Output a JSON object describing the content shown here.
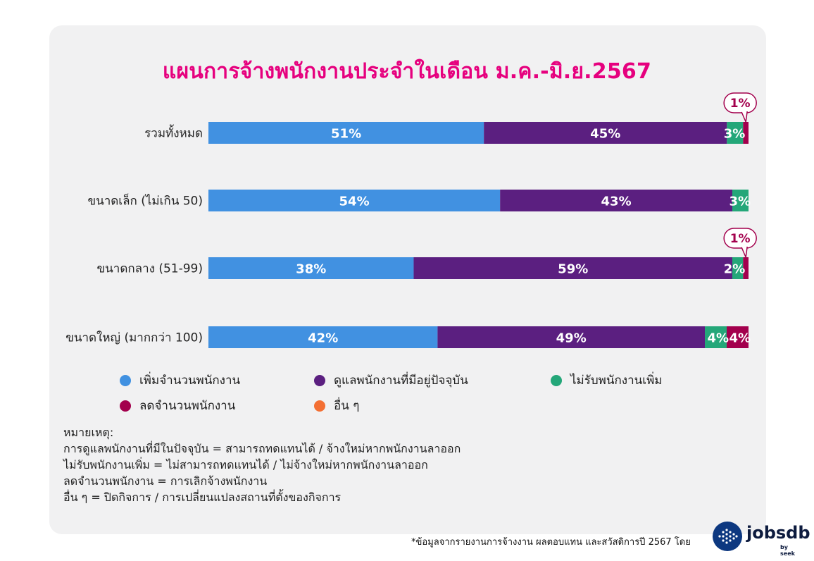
{
  "chart_data": {
    "type": "bar",
    "orientation": "horizontal-stacked",
    "title": "แผนการจ้างพนักงานประจำในเดือน ม.ค.-มิ.ย.2567",
    "categories": [
      "รวมทั้งหมด",
      "ขนาดเล็ก (ไม่เกิน 50)",
      "ขนาดกลาง (51-99)",
      "ขนาดใหญ่ (มากกว่า 100)"
    ],
    "series": [
      {
        "name": "เพิ่มจำนวนพนักงาน",
        "color": "#4191e1",
        "values": [
          51,
          54,
          38,
          42
        ],
        "labels": [
          "51%",
          "54%",
          "38%",
          "42%"
        ]
      },
      {
        "name": "ดูแลพนักงานที่มีอยู่ปัจจุบัน",
        "color": "#5b1f80",
        "values": [
          45,
          43,
          59,
          49
        ],
        "labels": [
          "45%",
          "43%",
          "59%",
          "49%"
        ]
      },
      {
        "name": "ไม่รับพนักงานเพิ่ม",
        "color": "#24a779",
        "values": [
          3,
          3,
          2,
          4
        ],
        "labels": [
          "3%",
          "3%",
          "2%",
          "4%"
        ]
      },
      {
        "name": "ลดจำนวนพนักงาน",
        "color": "#a3004d",
        "values": [
          1,
          0,
          1,
          4
        ],
        "labels": [
          "1%",
          "",
          "1%",
          "4%"
        ]
      },
      {
        "name": "อื่น ๆ",
        "color": "#f36f33",
        "values": [
          0,
          0,
          0,
          0
        ],
        "labels": [
          "",
          "",
          "",
          ""
        ]
      }
    ],
    "callouts": [
      {
        "category_index": 0,
        "series_index": 3,
        "text": "1%"
      },
      {
        "category_index": 2,
        "series_index": 3,
        "text": "1%"
      }
    ],
    "legend_position": "bottom"
  },
  "notes": {
    "heading": "หมายเหตุ:",
    "lines": [
      "การดูแลพนักงานที่มีในปัจจุบัน = สามารถทดแทนได้ / จ้างใหม่หากพนักงานลาออก",
      "ไม่รับพนักงานเพิ่ม = ไม่สามารถทดแทนได้ / ไม่จ้างใหม่หากพนักงานลาออก",
      "ลดจำนวนพนักงาน = การเลิกจ้างพนักงาน",
      "อื่น ๆ = ปิดกิจการ / การเปลี่ยนแปลงสถานที่ตั้งของกิจการ"
    ]
  },
  "footnote": "*ข้อมูลจากรายงานการจ้างงาน ผลตอบแทน และสวัสดิการปี 2567 โดย",
  "brand": {
    "name": "jobsdb",
    "sub": "by seek"
  }
}
